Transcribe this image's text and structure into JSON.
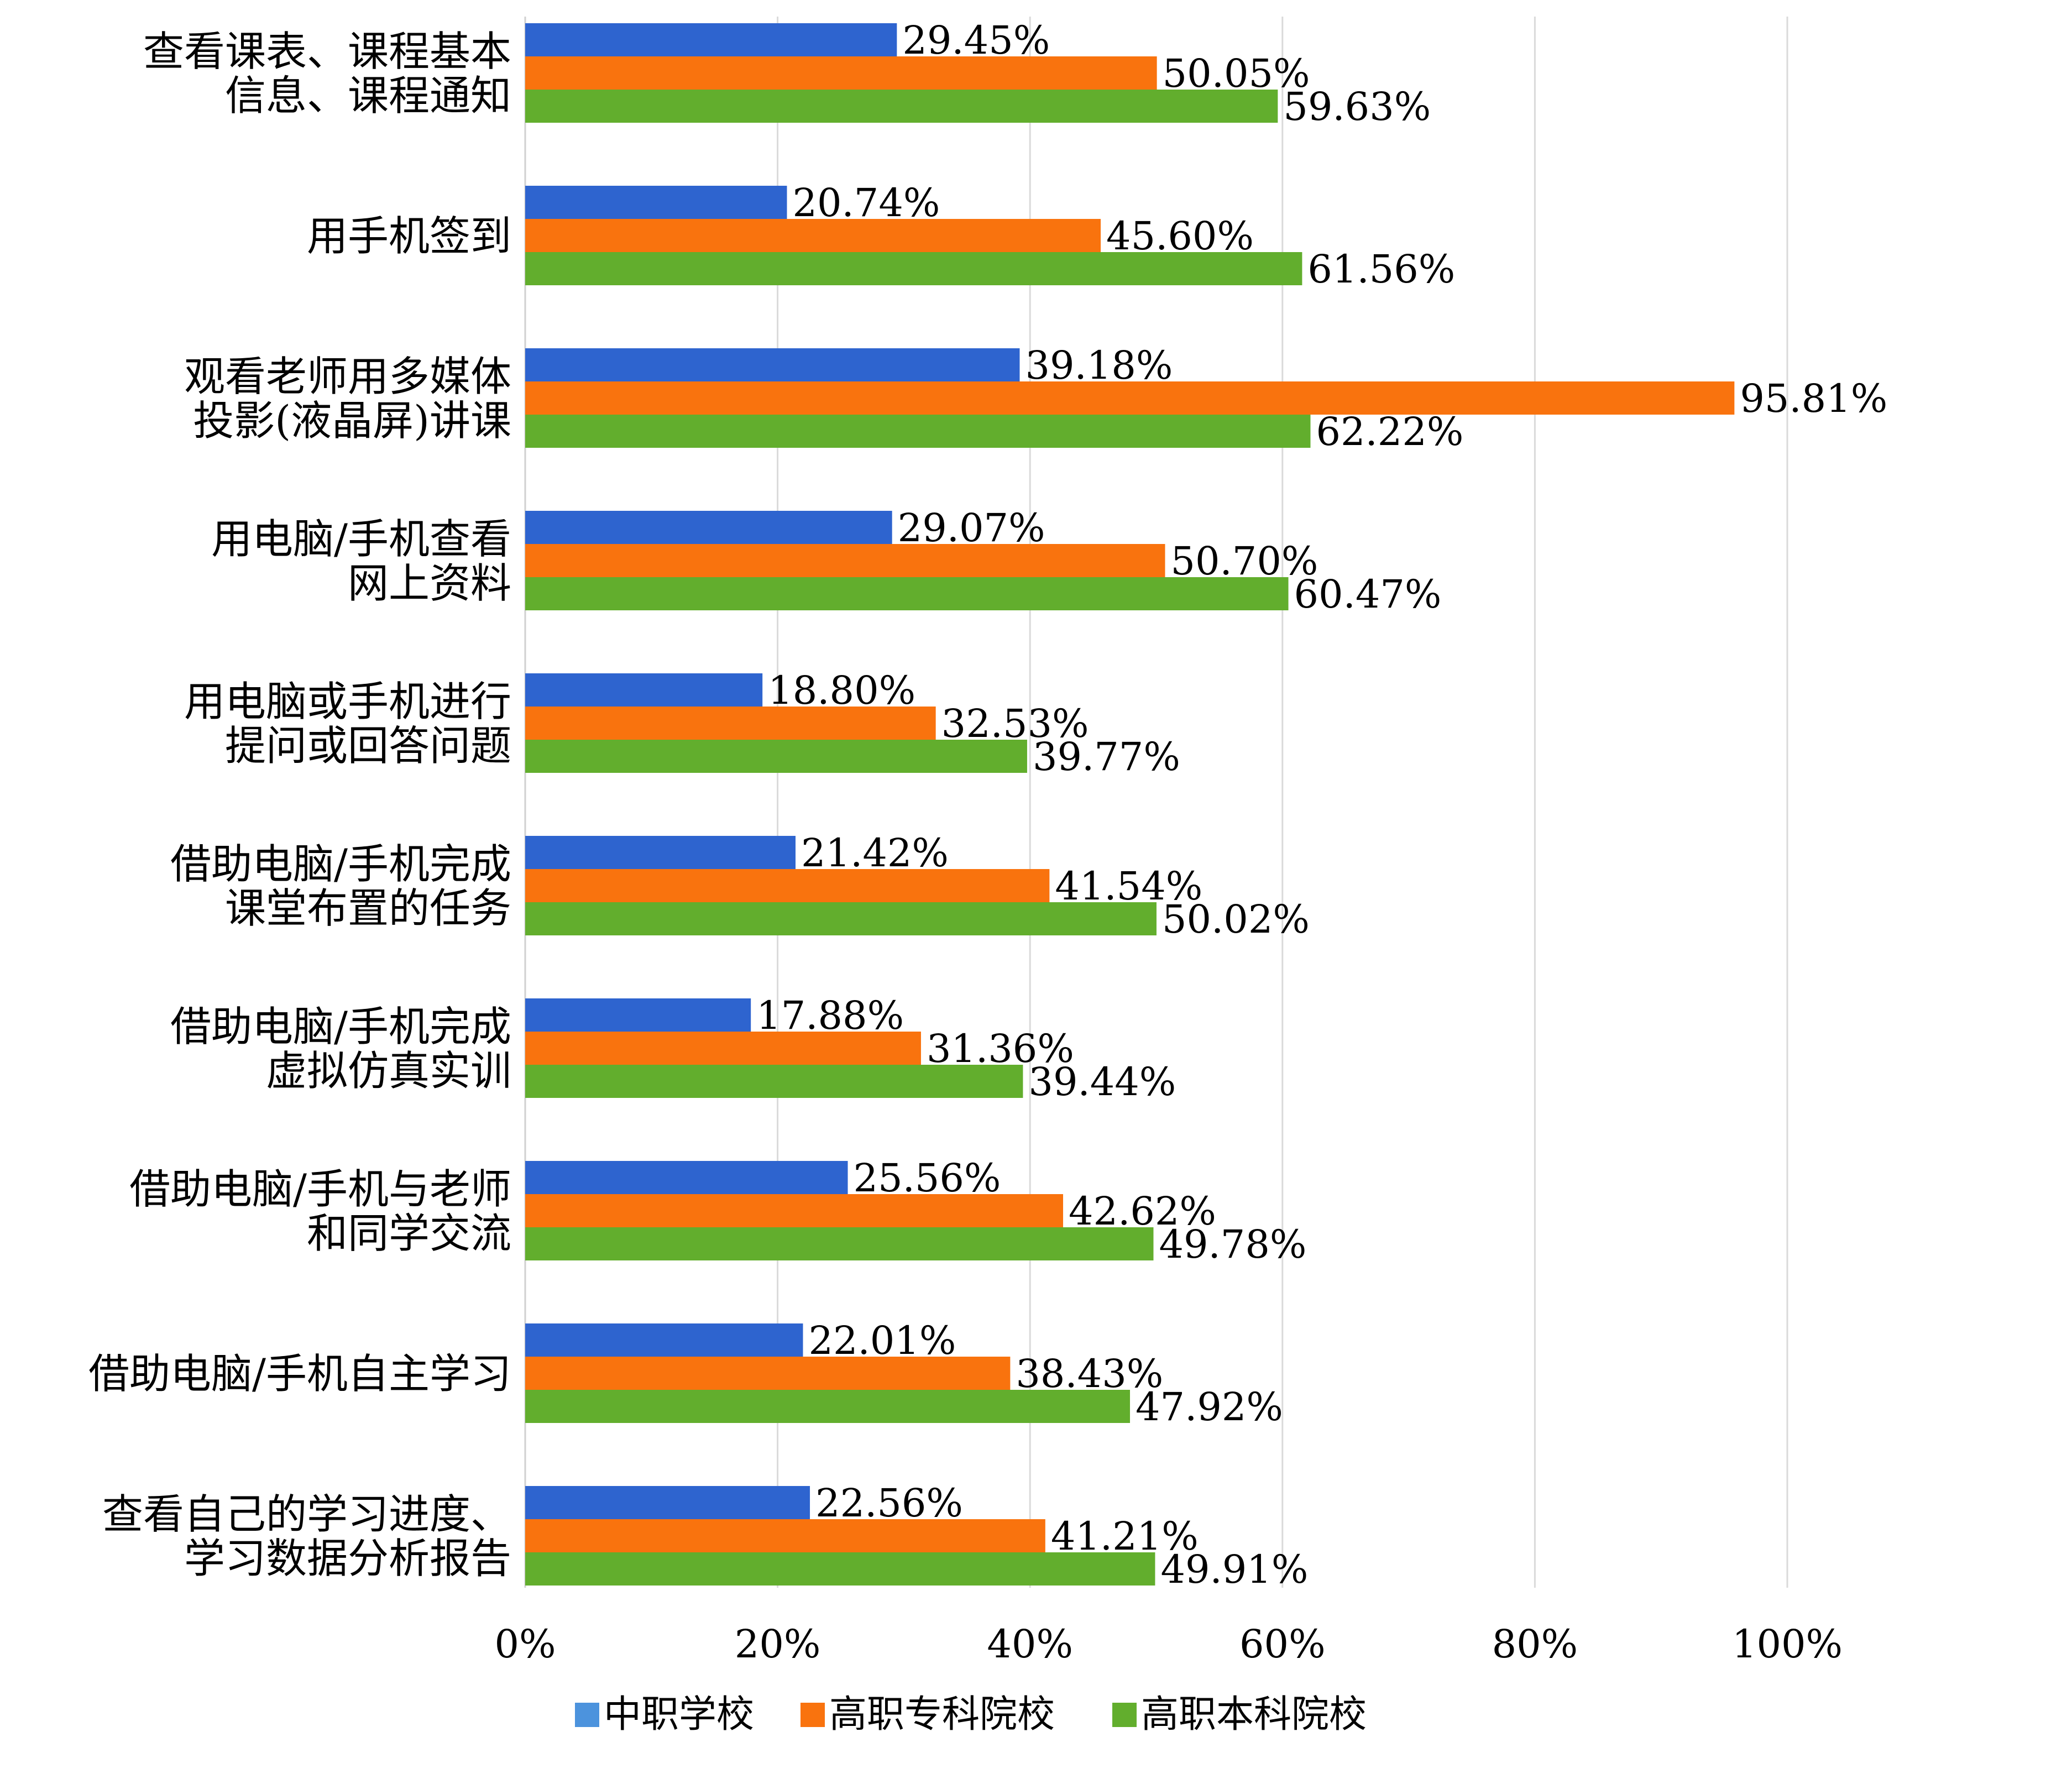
{
  "chart_data": {
    "type": "bar",
    "orientation": "horizontal",
    "categories": [
      [
        "查看课表、课程基本",
        "信息、课程通知"
      ],
      [
        "用手机签到"
      ],
      [
        "观看老师用多媒体",
        "投影(液晶屏)讲课"
      ],
      [
        "用电脑/手机查看",
        "网上资料"
      ],
      [
        "用电脑或手机进行",
        "提问或回答问题"
      ],
      [
        "借助电脑/手机完成",
        "课堂布置的任务"
      ],
      [
        "借助电脑/手机完成",
        "虚拟仿真实训"
      ],
      [
        "借助电脑/手机与老师",
        "和同学交流"
      ],
      [
        "借助电脑/手机自主学习"
      ],
      [
        "查看自己的学习进度、",
        "学习数据分析报告"
      ]
    ],
    "series": [
      {
        "name": "中职学校",
        "color": "#2E64CF",
        "legend_color": "#4C93DD",
        "values": [
          29.45,
          20.74,
          39.18,
          29.07,
          18.8,
          21.42,
          17.88,
          25.56,
          22.01,
          22.56
        ],
        "labels": [
          "29.45%",
          "20.74%",
          "39.18%",
          "29.07%",
          "18.80%",
          "21.42%",
          "17.88%",
          "25.56%",
          "22.01%",
          "22.56%"
        ]
      },
      {
        "name": "高职专科院校",
        "color": "#F9730E",
        "legend_color": "#F9730E",
        "values": [
          50.05,
          45.6,
          95.81,
          50.7,
          32.53,
          41.54,
          31.36,
          42.62,
          38.43,
          41.21
        ],
        "labels": [
          "50.05%",
          "45.60%",
          "95.81%",
          "50.70%",
          "32.53%",
          "41.54%",
          "31.36%",
          "42.62%",
          "38.43%",
          "41.21%"
        ]
      },
      {
        "name": "高职本科院校",
        "color": "#62AE2D",
        "legend_color": "#62AE2D",
        "values": [
          59.63,
          61.56,
          62.22,
          60.47,
          39.77,
          50.02,
          39.44,
          49.78,
          47.92,
          49.91
        ],
        "labels": [
          "59.63%",
          "61.56%",
          "62.22%",
          "60.47%",
          "39.77%",
          "50.02%",
          "39.44%",
          "49.78%",
          "47.92%",
          "49.91%"
        ]
      }
    ],
    "x_ticks": [
      "0%",
      "20%",
      "40%",
      "60%",
      "80%",
      "100%"
    ],
    "xlim": [
      0,
      100
    ],
    "grid": true,
    "legend_position": "bottom"
  }
}
